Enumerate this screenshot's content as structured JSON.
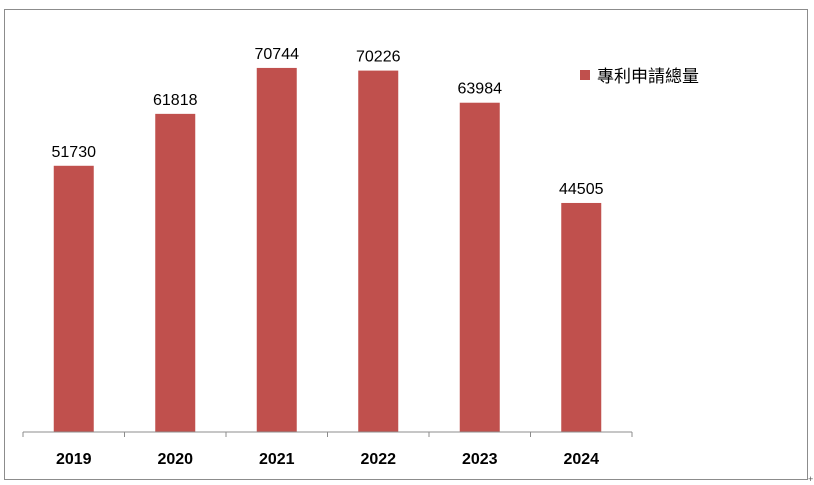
{
  "chart_data": {
    "type": "bar",
    "categories": [
      "2019",
      "2020",
      "2021",
      "2022",
      "2023",
      "2024"
    ],
    "series": [
      {
        "name": "專利申請總量",
        "values": [
          51730,
          61818,
          70744,
          70226,
          63984,
          44505
        ],
        "color": "#c0504d"
      }
    ],
    "data_labels": true,
    "ylim": [
      0,
      82000
    ],
    "y_axis_visible": false,
    "grid": false,
    "legend_position": "right"
  },
  "legend": {
    "label": "專利申請總量",
    "color": "#c0504d"
  },
  "corner_mark": "+"
}
